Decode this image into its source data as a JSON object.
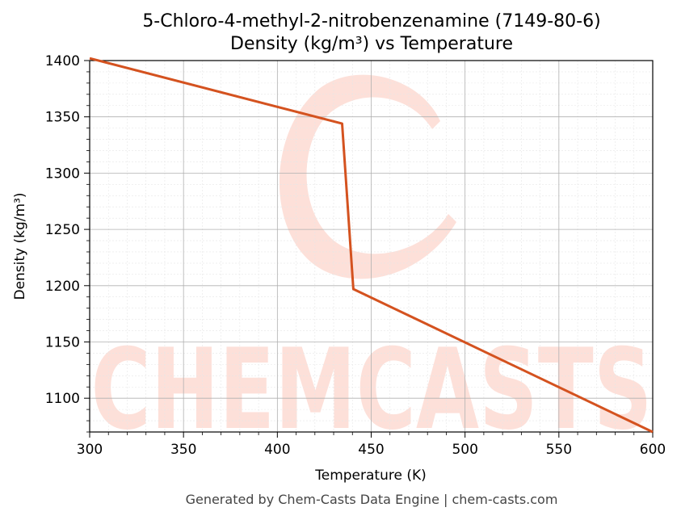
{
  "chart_data": {
    "type": "line",
    "title": "5-Chloro-4-methyl-2-nitrobenzenamine (7149-80-6)",
    "subtitle": "Density (kg/m³) vs Temperature",
    "xlabel": "Temperature (K)",
    "ylabel": "Density (kg/m³)",
    "xlim": [
      300,
      600
    ],
    "ylim": [
      1070,
      1400
    ],
    "xticks": [
      300,
      350,
      400,
      450,
      500,
      550,
      600
    ],
    "yticks": [
      1100,
      1150,
      1200,
      1250,
      1300,
      1350,
      1400
    ],
    "grid": true,
    "series": [
      {
        "x": [
          300,
          434.5,
          440.5,
          600
        ],
        "y": [
          1402,
          1344,
          1197,
          1070
        ]
      }
    ]
  },
  "colors": {
    "line": "#d4521f",
    "watermark": "#fde0d9",
    "grid_major": "#b0b0b0",
    "grid_minor": "#e6e6e6"
  },
  "watermark": {
    "text": "CHEMCASTS"
  },
  "footer": "Generated by Chem-Casts Data Engine | chem-casts.com"
}
